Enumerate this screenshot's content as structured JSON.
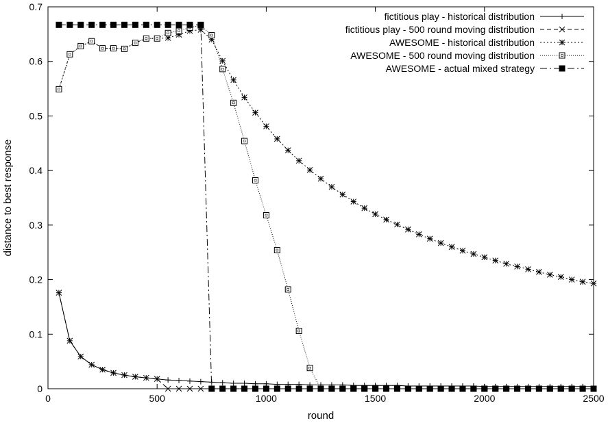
{
  "chart_data": {
    "type": "line",
    "title": "",
    "xlabel": "round",
    "ylabel": "distance to best response",
    "xlim": [
      0,
      2500
    ],
    "ylim": [
      0,
      0.7
    ],
    "xticks": [
      0,
      500,
      1000,
      1500,
      2000,
      2500
    ],
    "xtick_labels": [
      "0",
      "500",
      "1000",
      "1500",
      "2000",
      "2500"
    ],
    "yticks": [
      0,
      0.1,
      0.2,
      0.3,
      0.4,
      0.5,
      0.6,
      0.7
    ],
    "ytick_labels": [
      "0",
      "0.1",
      "0.2",
      "0.3",
      "0.4",
      "0.5",
      "0.6",
      "0.7"
    ],
    "grid": false,
    "legend_position": "top-right",
    "series": [
      {
        "name": "fictitious play - historical distribution",
        "style": "solid",
        "marker": "plus",
        "x": [
          50,
          100,
          150,
          200,
          250,
          300,
          350,
          400,
          450,
          500,
          550,
          600,
          650,
          700,
          750,
          800,
          850,
          900,
          950,
          1000,
          1050,
          1100,
          1150,
          1200,
          1250,
          1300,
          1350,
          1400,
          1450,
          1500,
          1550,
          1600,
          1650,
          1700,
          1750,
          1800,
          1850,
          1900,
          1950,
          2000,
          2050,
          2100,
          2150,
          2200,
          2250,
          2300,
          2350,
          2400,
          2450,
          2500
        ],
        "y": [
          0.176,
          0.088,
          0.059,
          0.044,
          0.035,
          0.029,
          0.025,
          0.022,
          0.02,
          0.018,
          0.016,
          0.015,
          0.014,
          0.013,
          0.012,
          0.011,
          0.01,
          0.01,
          0.009,
          0.009,
          0.008,
          0.008,
          0.008,
          0.007,
          0.007,
          0.007,
          0.007,
          0.006,
          0.006,
          0.006,
          0.006,
          0.006,
          0.005,
          0.005,
          0.005,
          0.005,
          0.005,
          0.005,
          0.005,
          0.004,
          0.004,
          0.004,
          0.004,
          0.004,
          0.004,
          0.004,
          0.004,
          0.004,
          0.004,
          0.004
        ]
      },
      {
        "name": "fictitious play - 500 round moving distribution",
        "style": "dashed",
        "marker": "x",
        "x": [
          50,
          100,
          150,
          200,
          250,
          300,
          350,
          400,
          450,
          500,
          550,
          600,
          650,
          700,
          750,
          800,
          850,
          900,
          950,
          1000,
          1050,
          1100,
          1150,
          1200,
          1250,
          1300,
          1350,
          1400,
          1450,
          1500,
          1550,
          1600,
          1650,
          1700,
          1750,
          1800,
          1850,
          1900,
          1950,
          2000,
          2050,
          2100,
          2150,
          2200,
          2250,
          2300,
          2350,
          2400,
          2450,
          2500
        ],
        "y": [
          0.176,
          0.088,
          0.059,
          0.044,
          0.035,
          0.029,
          0.025,
          0.022,
          0.02,
          0.018,
          0,
          0,
          0,
          0,
          0,
          0,
          0,
          0,
          0,
          0,
          0,
          0,
          0,
          0,
          0,
          0,
          0,
          0,
          0,
          0,
          0,
          0,
          0,
          0,
          0,
          0,
          0,
          0,
          0,
          0,
          0,
          0,
          0,
          0,
          0,
          0,
          0,
          0,
          0,
          0
        ]
      },
      {
        "name": "AWESOME - historical distribution",
        "style": "dotted",
        "marker": "star",
        "x": [
          50,
          100,
          150,
          200,
          250,
          300,
          350,
          400,
          450,
          500,
          550,
          600,
          650,
          700,
          750,
          800,
          850,
          900,
          950,
          1000,
          1050,
          1100,
          1150,
          1200,
          1250,
          1300,
          1350,
          1400,
          1450,
          1500,
          1550,
          1600,
          1650,
          1700,
          1750,
          1800,
          1850,
          1900,
          1950,
          2000,
          2050,
          2100,
          2150,
          2200,
          2250,
          2300,
          2350,
          2400,
          2450,
          2500
        ],
        "y": [
          0.549,
          0.613,
          0.628,
          0.637,
          0.624,
          0.624,
          0.623,
          0.634,
          0.642,
          0.642,
          0.643,
          0.649,
          0.656,
          0.658,
          0.64,
          0.601,
          0.566,
          0.534,
          0.506,
          0.481,
          0.458,
          0.437,
          0.418,
          0.401,
          0.385,
          0.37,
          0.356,
          0.343,
          0.331,
          0.32,
          0.31,
          0.301,
          0.292,
          0.283,
          0.275,
          0.267,
          0.26,
          0.253,
          0.247,
          0.241,
          0.235,
          0.229,
          0.224,
          0.219,
          0.214,
          0.209,
          0.205,
          0.2,
          0.196,
          0.193
        ]
      },
      {
        "name": "AWESOME - 500 round moving distribution",
        "style": "fine-dotted",
        "marker": "open-square",
        "x": [
          50,
          100,
          150,
          200,
          250,
          300,
          350,
          400,
          450,
          500,
          550,
          600,
          650,
          700,
          750,
          800,
          850,
          900,
          950,
          1000,
          1050,
          1100,
          1150,
          1200,
          1250,
          1300,
          1350,
          1400,
          1450,
          1500,
          1550,
          1600,
          1650,
          1700,
          1750,
          1800,
          1850,
          1900,
          1950,
          2000,
          2050,
          2100,
          2150,
          2200,
          2250,
          2300,
          2350,
          2400,
          2450,
          2500
        ],
        "y": [
          0.549,
          0.613,
          0.628,
          0.637,
          0.624,
          0.624,
          0.623,
          0.634,
          0.642,
          0.642,
          0.652,
          0.656,
          0.662,
          0.666,
          0.648,
          0.586,
          0.524,
          0.454,
          0.382,
          0.318,
          0.254,
          0.182,
          0.106,
          0.038,
          0,
          0,
          0,
          0,
          0,
          0,
          0,
          0,
          0,
          0,
          0,
          0,
          0,
          0,
          0,
          0,
          0,
          0,
          0,
          0,
          0,
          0,
          0,
          0,
          0,
          0
        ]
      },
      {
        "name": "AWESOME - actual mixed strategy",
        "style": "dash-dot",
        "marker": "filled-square",
        "x": [
          50,
          100,
          150,
          200,
          250,
          300,
          350,
          400,
          450,
          500,
          550,
          600,
          650,
          700,
          750,
          800,
          850,
          900,
          950,
          1000,
          1050,
          1100,
          1150,
          1200,
          1250,
          1300,
          1350,
          1400,
          1450,
          1500,
          1550,
          1600,
          1650,
          1700,
          1750,
          1800,
          1850,
          1900,
          1950,
          2000,
          2050,
          2100,
          2150,
          2200,
          2250,
          2300,
          2350,
          2400,
          2450,
          2500
        ],
        "y": [
          0.667,
          0.667,
          0.667,
          0.667,
          0.667,
          0.667,
          0.667,
          0.667,
          0.667,
          0.667,
          0.667,
          0.667,
          0.667,
          0.667,
          0,
          0,
          0,
          0,
          0,
          0,
          0,
          0,
          0,
          0,
          0,
          0,
          0,
          0,
          0,
          0,
          0,
          0,
          0,
          0,
          0,
          0,
          0,
          0,
          0,
          0,
          0,
          0,
          0,
          0,
          0,
          0,
          0,
          0,
          0,
          0
        ]
      }
    ]
  }
}
